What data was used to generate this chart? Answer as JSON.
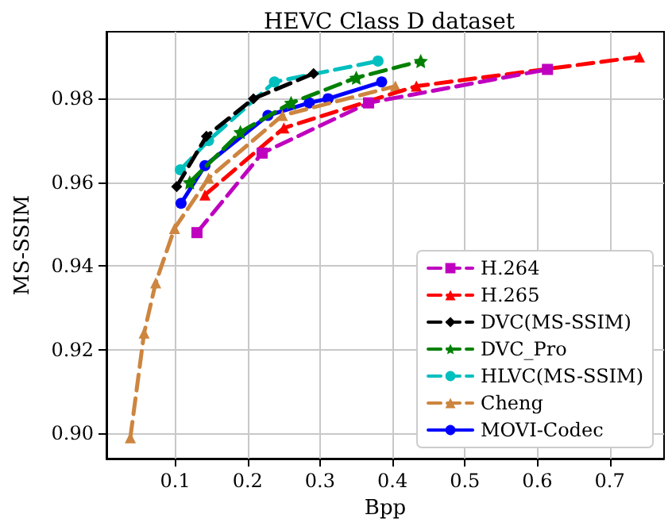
{
  "chart_data": {
    "type": "line",
    "title": "HEVC Class D dataset",
    "xlabel": "Bpp",
    "ylabel": "MS-SSIM",
    "xlim": [
      0.005,
      0.775
    ],
    "xticks": [
      0.1,
      0.2,
      0.3,
      0.4,
      0.5,
      0.6,
      0.7
    ],
    "ylim": [
      0.894,
      0.996
    ],
    "yticks": [
      {
        "value": 0.9,
        "label": "0.90"
      },
      {
        "value": 0.92,
        "label": "0.92"
      },
      {
        "value": 0.94,
        "label": "0.94"
      },
      {
        "value": 0.96,
        "label": "0.96"
      },
      {
        "value": 0.98,
        "label": "0.98"
      }
    ],
    "grid": true,
    "legend": "bottom right",
    "series": [
      {
        "name": "H.264",
        "color": "#bf00bf",
        "marker": "square",
        "line_style": "dashed",
        "x": [
          0.13,
          0.22,
          0.367,
          0.614
        ],
        "values": [
          0.948,
          0.967,
          0.979,
          0.987
        ]
      },
      {
        "name": "H.265",
        "color": "#ff0000",
        "marker": "triangle",
        "line_style": "dashed",
        "x": [
          0.141,
          0.25,
          0.433,
          0.741
        ],
        "values": [
          0.957,
          0.973,
          0.983,
          0.99
        ]
      },
      {
        "name": "DVC(MS-SSIM)",
        "color": "#000000",
        "marker": "diamond",
        "line_style": "dashed",
        "x": [
          0.102,
          0.143,
          0.208,
          0.291
        ],
        "values": [
          0.959,
          0.971,
          0.98,
          0.986
        ]
      },
      {
        "name": "DVC_Pro",
        "color": "#008000",
        "marker": "star",
        "line_style": "dashed",
        "x": [
          0.12,
          0.19,
          0.26,
          0.35,
          0.439
        ],
        "values": [
          0.96,
          0.972,
          0.979,
          0.985,
          0.989
        ]
      },
      {
        "name": "HLVC(MS-SSIM)",
        "color": "#00bfbf",
        "marker": "circle",
        "line_style": "dashed",
        "x": [
          0.107,
          0.146,
          0.237,
          0.38
        ],
        "values": [
          0.963,
          0.97,
          0.984,
          0.989
        ]
      },
      {
        "name": "Cheng",
        "color": "#cd853f",
        "marker": "triangle",
        "line_style": "dashed",
        "x": [
          0.038,
          0.057,
          0.073,
          0.099,
          0.146,
          0.248,
          0.404
        ],
        "values": [
          0.899,
          0.924,
          0.936,
          0.949,
          0.961,
          0.976,
          0.983
        ]
      },
      {
        "name": "MOVI-Codec",
        "color": "#0000ff",
        "marker": "circle",
        "line_style": "solid",
        "x": [
          0.108,
          0.141,
          0.228,
          0.285,
          0.311,
          0.385
        ],
        "values": [
          0.955,
          0.964,
          0.976,
          0.979,
          0.98,
          0.984
        ]
      }
    ]
  }
}
